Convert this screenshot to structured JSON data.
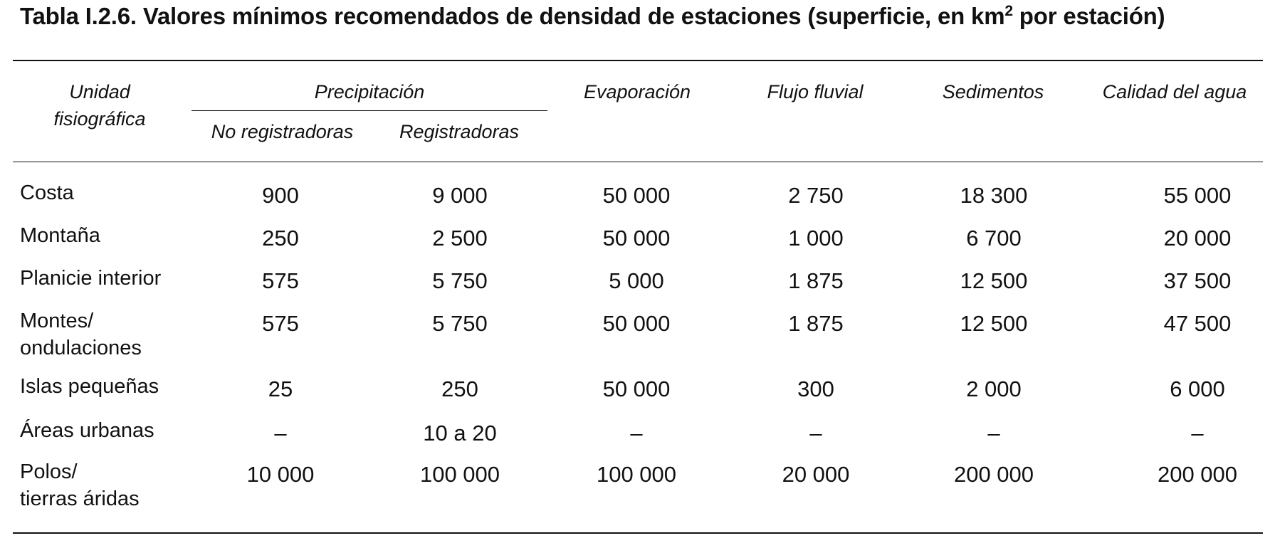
{
  "title": {
    "prefix": "Tabla I.2.6.  Valores mínimos recomendados de densidad de estaciones (superficie, en km",
    "sup": "2",
    "suffix": " por estación)"
  },
  "columns": {
    "unit_line1": "Unidad",
    "unit_line2": "fisiográfica",
    "precip": "Precipitación",
    "precip_sub1": "No registradoras",
    "precip_sub2": "Registradoras",
    "evap": "Evaporación",
    "flow": "Flujo fluvial",
    "sed": "Sedimentos",
    "quality": "Calidad del agua"
  },
  "rows": [
    {
      "label1": "Costa",
      "label2": "",
      "values": [
        "900",
        "9 000",
        "50 000",
        "2 750",
        "18 300",
        "55 000"
      ]
    },
    {
      "label1": "Montaña",
      "label2": "",
      "values": [
        "250",
        "2 500",
        "50 000",
        "1 000",
        "6 700",
        "20 000"
      ]
    },
    {
      "label1": "Planicie interior",
      "label2": "",
      "values": [
        "575",
        "5 750",
        "5 000",
        "1 875",
        "12 500",
        "37 500"
      ]
    },
    {
      "label1": "Montes/",
      "label2": "ondulaciones",
      "values": [
        "575",
        "5 750",
        "50 000",
        "1 875",
        "12 500",
        "47 500"
      ]
    },
    {
      "label1": "Islas pequeñas",
      "label2": "",
      "values": [
        "25",
        "250",
        "50 000",
        "300",
        "2 000",
        "6 000"
      ]
    },
    {
      "label1": "Áreas urbanas",
      "label2": "",
      "values": [
        "–",
        "10 a 20",
        "–",
        "–",
        "–",
        "–"
      ]
    },
    {
      "label1": "Polos/",
      "label2": "tierras áridas",
      "values": [
        "10 000",
        "100 000",
        "100 000",
        "20 000",
        "200 000",
        "200 000"
      ]
    }
  ]
}
